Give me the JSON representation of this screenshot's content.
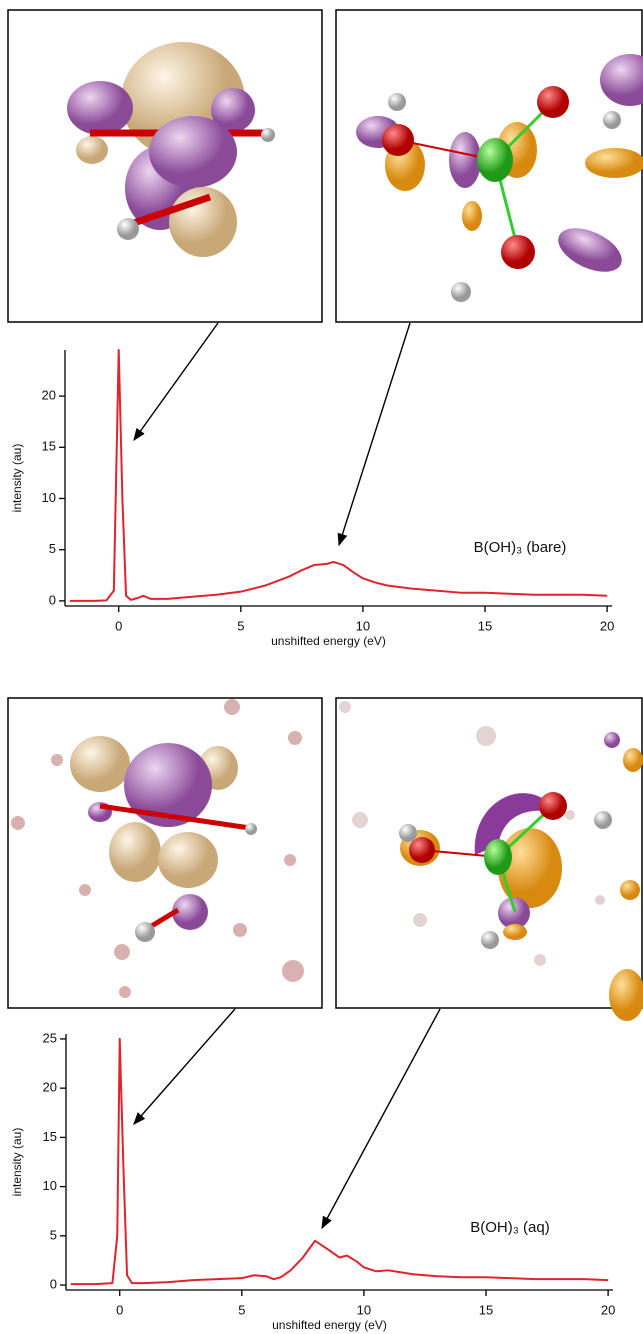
{
  "chart_data": [
    {
      "type": "line",
      "xlabel": "unshifted energy (eV)",
      "ylabel": "intensity (au)",
      "annotation": "B(OH)₃ (bare)",
      "xlim": [
        -2.2,
        20.2
      ],
      "ylim": [
        -0.5,
        24.5
      ],
      "xticks": [
        0,
        5,
        10,
        15,
        20
      ],
      "yticks": [
        0,
        5,
        10,
        15,
        20
      ],
      "x": [
        -2,
        -1,
        -0.5,
        -0.2,
        0,
        0.15,
        0.3,
        0.5,
        0.8,
        1,
        1.3,
        2,
        3,
        4,
        5,
        6,
        7,
        7.5,
        8,
        8.5,
        8.8,
        9.2,
        9.6,
        10,
        10.5,
        11,
        12,
        13,
        14,
        15,
        16,
        17,
        18,
        19,
        20
      ],
      "series": [
        {
          "color": "#e0242b",
          "values": [
            0,
            0,
            0.05,
            1,
            24.5,
            10,
            0.5,
            0.1,
            0.3,
            0.5,
            0.2,
            0.2,
            0.4,
            0.6,
            0.9,
            1.5,
            2.4,
            3.0,
            3.5,
            3.6,
            3.8,
            3.5,
            2.8,
            2.2,
            1.8,
            1.5,
            1.2,
            1.0,
            0.8,
            0.8,
            0.7,
            0.6,
            0.6,
            0.6,
            0.5
          ]
        }
      ]
    },
    {
      "type": "line",
      "xlabel": "unshifted energy (eV)",
      "ylabel": "intensity (au)",
      "annotation": "B(OH)₃ (aq)",
      "xlim": [
        -2.2,
        20.2
      ],
      "ylim": [
        -0.5,
        25.5
      ],
      "xticks": [
        0,
        5,
        10,
        15,
        20
      ],
      "yticks": [
        0,
        5,
        10,
        15,
        20,
        25
      ],
      "x": [
        -2,
        -1,
        -0.3,
        -0.1,
        0,
        0.15,
        0.3,
        0.5,
        1,
        2,
        3,
        4,
        5,
        5.5,
        6,
        6.3,
        6.6,
        7,
        7.5,
        8,
        8.3,
        8.6,
        9,
        9.3,
        9.7,
        10,
        10.5,
        11,
        11.5,
        12,
        13,
        14,
        15,
        16,
        17,
        18,
        19,
        20
      ],
      "series": [
        {
          "color": "#e0242b",
          "values": [
            0.1,
            0.1,
            0.2,
            5,
            25,
            12,
            1,
            0.2,
            0.2,
            0.3,
            0.5,
            0.6,
            0.7,
            1.0,
            0.9,
            0.6,
            0.8,
            1.5,
            2.8,
            4.5,
            4.0,
            3.5,
            2.8,
            3.0,
            2.4,
            1.8,
            1.4,
            1.5,
            1.3,
            1.1,
            0.9,
            0.8,
            0.8,
            0.7,
            0.6,
            0.6,
            0.6,
            0.5
          ]
        }
      ]
    }
  ]
}
